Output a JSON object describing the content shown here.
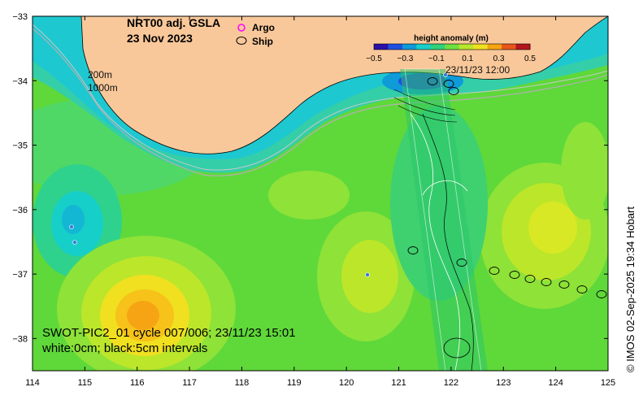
{
  "title": {
    "line1": "NRT00 adj. GSLA",
    "line2": "23 Nov 2023"
  },
  "legend": {
    "argo_label": "Argo",
    "ship_label": "Ship",
    "argo_color": "#ff00ff",
    "ship_color": "#000000"
  },
  "colorbar": {
    "title": "height anomaly (m)",
    "ticks": [
      "−0.5",
      "−0.3",
      "−0.1",
      "0.1",
      "0.3",
      "0.5"
    ],
    "range": [
      -0.5,
      0.5
    ],
    "colormap": [
      "#2a0fa8",
      "#1f4fe0",
      "#0f9ad8",
      "#16cfc8",
      "#2fd27a",
      "#6ee040",
      "#b8e62a",
      "#f0e020",
      "#f7a414",
      "#e8551a",
      "#b4141e"
    ]
  },
  "isobaths": {
    "label_200": "200m",
    "label_1000": "1000m"
  },
  "swot": {
    "line1": "SWOT-PIC2_01 cycle 007/006; 23/11/23 15:01",
    "line2": "white:0cm; black:5cm intervals"
  },
  "pass_time_label": "23/11/23 12:00",
  "credit": "© IMOS 02-Sep-2025 19:34 Hobart",
  "axes": {
    "x_ticks": [
      "114",
      "115",
      "116",
      "117",
      "118",
      "119",
      "120",
      "121",
      "122",
      "123",
      "124",
      "125"
    ],
    "y_ticks": [
      "−33",
      "−34",
      "−35",
      "−36",
      "−37",
      "−38"
    ],
    "x_range": [
      114,
      125
    ],
    "y_range": [
      -38.5,
      -33
    ]
  },
  "colors": {
    "land": "#f9c89a",
    "ocean_base": "#5fd83a",
    "coast_shelf": "#1ec8d0"
  }
}
